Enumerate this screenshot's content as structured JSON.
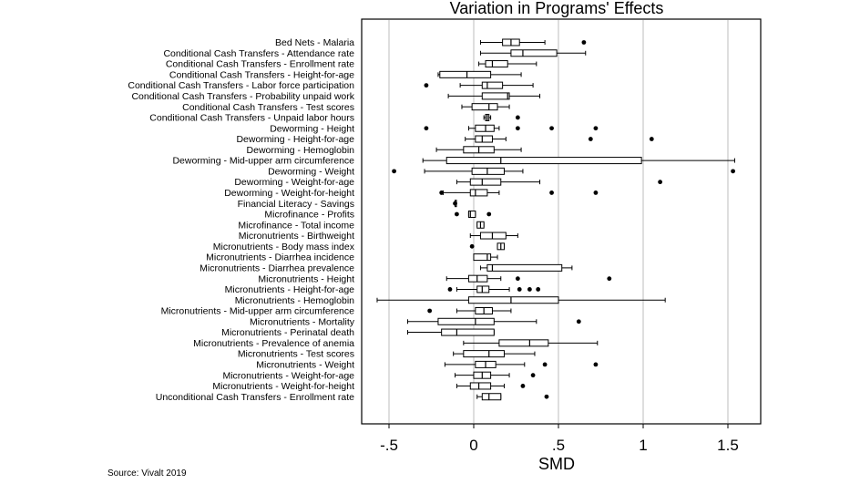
{
  "source": "Source: Vivalt 2019",
  "chart_data": {
    "type": "boxplot",
    "title": "Variation in Programs' Effects",
    "xlabel": "SMD",
    "ylabel": "",
    "xlim": [
      -0.7,
      1.65
    ],
    "xticks": [
      -0.5,
      0,
      0.5,
      1,
      1.5
    ],
    "xtick_labels": [
      "-.5",
      "0",
      ".5",
      "1",
      "1.5"
    ],
    "grid": "vertical",
    "series": [
      {
        "name": "Bed Nets - Malaria",
        "whisker_low": 0.04,
        "q1": 0.17,
        "median": 0.22,
        "q3": 0.27,
        "whisker_high": 0.42,
        "outliers": [
          0.65
        ]
      },
      {
        "name": "Conditional Cash Transfers - Attendance rate",
        "whisker_low": 0.04,
        "q1": 0.22,
        "median": 0.29,
        "q3": 0.49,
        "whisker_high": 0.66,
        "outliers": []
      },
      {
        "name": "Conditional Cash Transfers - Enrollment rate",
        "whisker_low": 0.03,
        "q1": 0.07,
        "median": 0.11,
        "q3": 0.2,
        "whisker_high": 0.37,
        "outliers": []
      },
      {
        "name": "Conditional Cash Transfers - Height-for-age",
        "whisker_low": -0.21,
        "q1": -0.2,
        "median": -0.04,
        "q3": 0.1,
        "whisker_high": 0.28,
        "outliers": []
      },
      {
        "name": "Conditional Cash Transfers - Labor force participation",
        "whisker_low": -0.08,
        "q1": 0.05,
        "median": 0.08,
        "q3": 0.17,
        "whisker_high": 0.35,
        "outliers": [
          -0.28
        ]
      },
      {
        "name": "Conditional Cash Transfers - Probability unpaid work",
        "whisker_low": -0.15,
        "q1": 0.05,
        "median": 0.2,
        "q3": 0.21,
        "whisker_high": 0.39,
        "outliers": []
      },
      {
        "name": "Conditional Cash Transfers - Test scores",
        "whisker_low": -0.07,
        "q1": -0.01,
        "median": 0.09,
        "q3": 0.14,
        "whisker_high": 0.21,
        "outliers": []
      },
      {
        "name": "Conditional Cash Transfers - Unpaid labor hours",
        "whisker_low": 0.06,
        "q1": 0.07,
        "median": 0.08,
        "q3": 0.09,
        "whisker_high": 0.1,
        "outliers": [
          0.26
        ]
      },
      {
        "name": "Deworming - Height",
        "whisker_low": -0.03,
        "q1": 0.01,
        "median": 0.07,
        "q3": 0.12,
        "whisker_high": 0.15,
        "outliers": [
          -0.28,
          0.26,
          0.46,
          0.72
        ]
      },
      {
        "name": "Deworming - Height-for-age",
        "whisker_low": -0.05,
        "q1": 0.01,
        "median": 0.05,
        "q3": 0.11,
        "whisker_high": 0.19,
        "outliers": [
          0.69,
          1.05
        ]
      },
      {
        "name": "Deworming - Hemoglobin",
        "whisker_low": -0.22,
        "q1": -0.06,
        "median": 0.03,
        "q3": 0.12,
        "whisker_high": 0.28,
        "outliers": []
      },
      {
        "name": "Deworming - Mid-upper arm circumference",
        "whisker_low": -0.3,
        "q1": -0.16,
        "median": 0.16,
        "q3": 0.99,
        "whisker_high": 1.54,
        "outliers": []
      },
      {
        "name": "Deworming - Weight",
        "whisker_low": -0.29,
        "q1": -0.01,
        "median": 0.08,
        "q3": 0.18,
        "whisker_high": 0.29,
        "outliers": [
          -0.47,
          1.53
        ]
      },
      {
        "name": "Deworming - Weight-for-age",
        "whisker_low": -0.1,
        "q1": -0.02,
        "median": 0.05,
        "q3": 0.16,
        "whisker_high": 0.39,
        "outliers": [
          1.1
        ]
      },
      {
        "name": "Deworming - Weight-for-height",
        "whisker_low": -0.18,
        "q1": -0.02,
        "median": 0.01,
        "q3": 0.08,
        "whisker_high": 0.15,
        "outliers": [
          -0.19,
          0.46,
          0.72
        ]
      },
      {
        "name": "Financial Literacy - Savings",
        "whisker_low": -0.11,
        "q1": -0.11,
        "median": -0.11,
        "q3": -0.11,
        "whisker_high": -0.11,
        "outliers": [
          -0.11
        ]
      },
      {
        "name": "Microfinance - Profits",
        "whisker_low": -0.03,
        "q1": -0.03,
        "median": -0.02,
        "q3": 0.01,
        "whisker_high": 0.01,
        "outliers": [
          -0.1,
          0.09
        ]
      },
      {
        "name": "Microfinance - Total income",
        "whisker_low": 0.02,
        "q1": 0.02,
        "median": 0.04,
        "q3": 0.06,
        "whisker_high": 0.06,
        "outliers": []
      },
      {
        "name": "Micronutrients - Birthweight",
        "whisker_low": -0.02,
        "q1": 0.04,
        "median": 0.11,
        "q3": 0.19,
        "whisker_high": 0.26,
        "outliers": []
      },
      {
        "name": "Micronutrients - Body mass index",
        "whisker_low": 0.14,
        "q1": 0.14,
        "median": 0.16,
        "q3": 0.18,
        "whisker_high": 0.18,
        "outliers": [
          -0.01
        ]
      },
      {
        "name": "Micronutrients - Diarrhea incidence",
        "whisker_low": 0.0,
        "q1": 0.0,
        "median": 0.08,
        "q3": 0.1,
        "whisker_high": 0.14,
        "outliers": []
      },
      {
        "name": "Micronutrients - Diarrhea prevalence",
        "whisker_low": 0.04,
        "q1": 0.08,
        "median": 0.11,
        "q3": 0.52,
        "whisker_high": 0.58,
        "outliers": []
      },
      {
        "name": "Micronutrients - Height",
        "whisker_low": -0.16,
        "q1": -0.03,
        "median": 0.02,
        "q3": 0.08,
        "whisker_high": 0.16,
        "outliers": [
          0.26,
          0.8
        ]
      },
      {
        "name": "Micronutrients - Height-for-age",
        "whisker_low": -0.1,
        "q1": 0.02,
        "median": 0.05,
        "q3": 0.09,
        "whisker_high": 0.21,
        "outliers": [
          -0.14,
          0.27,
          0.33,
          0.38
        ]
      },
      {
        "name": "Micronutrients - Hemoglobin",
        "whisker_low": -0.57,
        "q1": -0.03,
        "median": 0.22,
        "q3": 0.5,
        "whisker_high": 1.13,
        "outliers": []
      },
      {
        "name": "Micronutrients - Mid-upper arm circumference",
        "whisker_low": -0.1,
        "q1": 0.01,
        "median": 0.06,
        "q3": 0.11,
        "whisker_high": 0.22,
        "outliers": [
          -0.26
        ]
      },
      {
        "name": "Micronutrients - Mortality",
        "whisker_low": -0.39,
        "q1": -0.21,
        "median": 0.01,
        "q3": 0.12,
        "whisker_high": 0.37,
        "outliers": [
          0.62
        ]
      },
      {
        "name": "Micronutrients - Perinatal death",
        "whisker_low": -0.39,
        "q1": -0.19,
        "median": -0.1,
        "q3": 0.12,
        "whisker_high": 0.12,
        "outliers": []
      },
      {
        "name": "Micronutrients - Prevalence of anemia",
        "whisker_low": -0.06,
        "q1": 0.15,
        "median": 0.33,
        "q3": 0.44,
        "whisker_high": 0.73,
        "outliers": []
      },
      {
        "name": "Micronutrients - Test scores",
        "whisker_low": -0.12,
        "q1": -0.06,
        "median": 0.09,
        "q3": 0.18,
        "whisker_high": 0.36,
        "outliers": []
      },
      {
        "name": "Micronutrients - Weight",
        "whisker_low": -0.17,
        "q1": 0.01,
        "median": 0.07,
        "q3": 0.13,
        "whisker_high": 0.3,
        "outliers": [
          0.42,
          0.72
        ]
      },
      {
        "name": "Micronutrients - Weight-for-age",
        "whisker_low": -0.11,
        "q1": 0.0,
        "median": 0.05,
        "q3": 0.1,
        "whisker_high": 0.21,
        "outliers": [
          0.35
        ]
      },
      {
        "name": "Micronutrients - Weight-for-height",
        "whisker_low": -0.1,
        "q1": -0.02,
        "median": 0.03,
        "q3": 0.1,
        "whisker_high": 0.18,
        "outliers": [
          0.29
        ]
      },
      {
        "name": "Unconditional Cash Transfers - Enrollment rate",
        "whisker_low": 0.02,
        "q1": 0.05,
        "median": 0.09,
        "q3": 0.16,
        "whisker_high": 0.16,
        "outliers": [
          0.43
        ]
      }
    ]
  }
}
